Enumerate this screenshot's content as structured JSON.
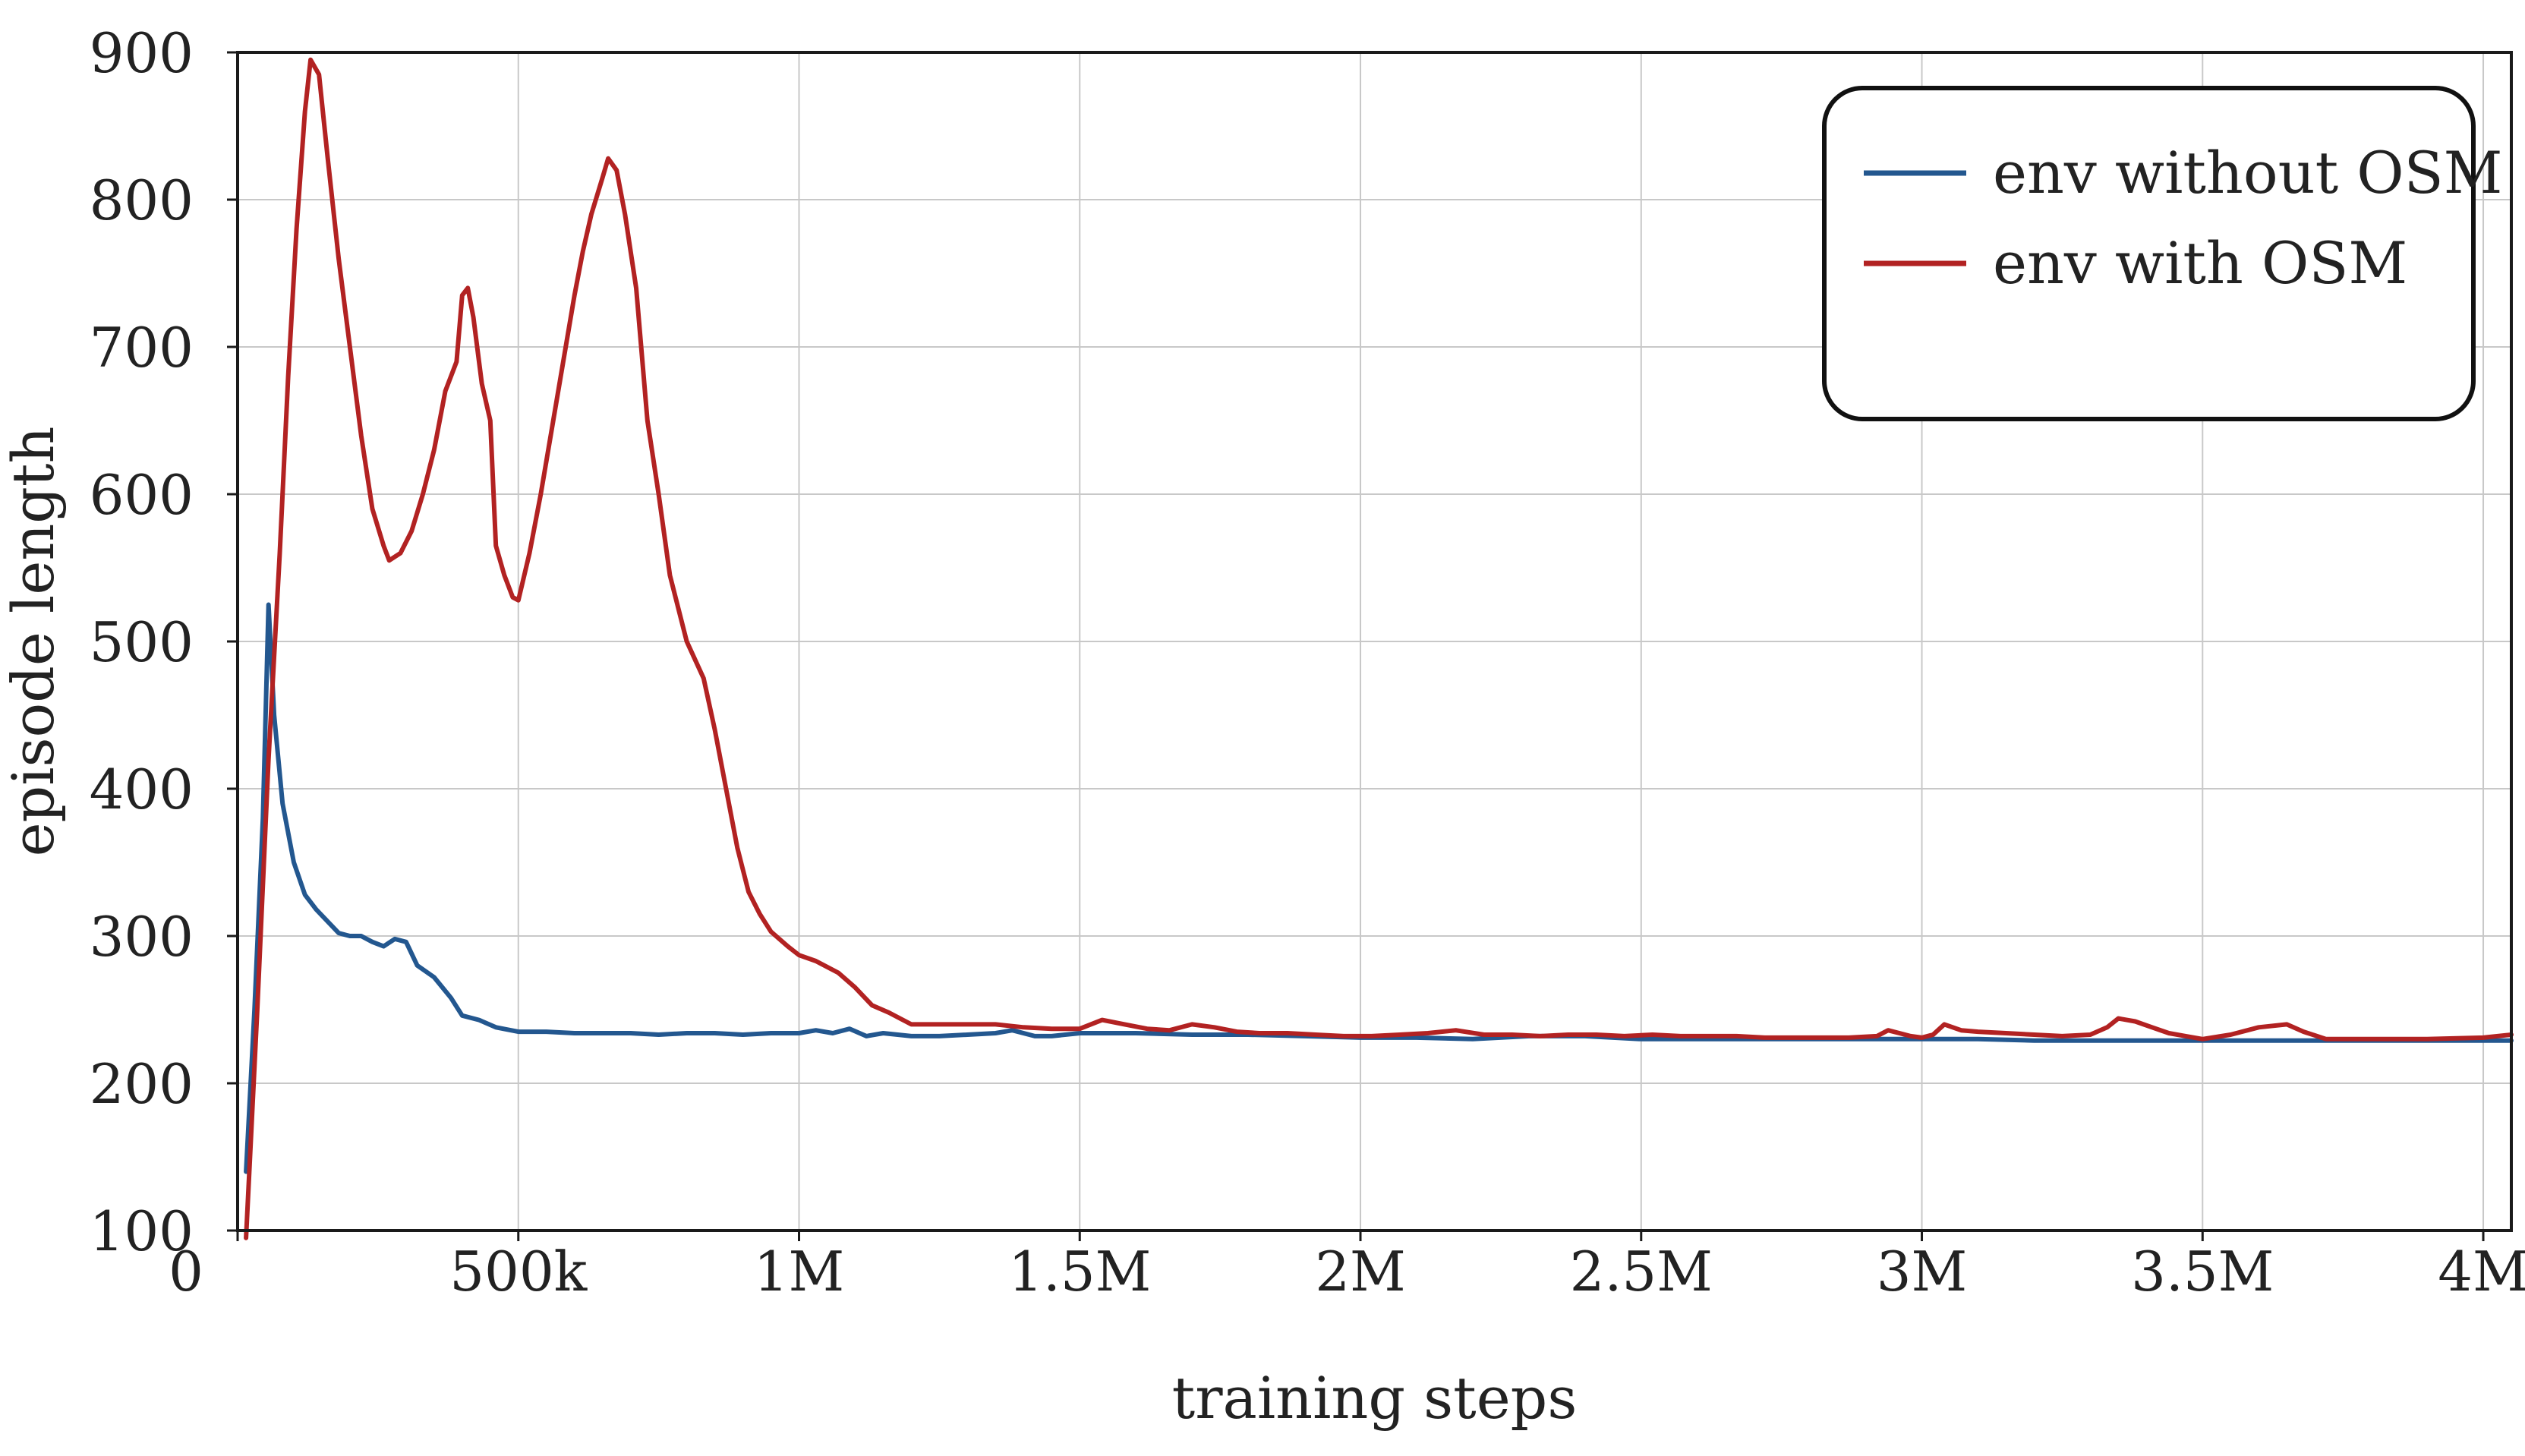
{
  "chart_data": {
    "type": "line",
    "xlabel": "training steps",
    "ylabel": "episode length",
    "xlim": [
      0,
      4050000
    ],
    "ylim": [
      100,
      900
    ],
    "x_ticks": [
      {
        "value": 0,
        "label": "0"
      },
      {
        "value": 500000,
        "label": "500k"
      },
      {
        "value": 1000000,
        "label": "1M"
      },
      {
        "value": 1500000,
        "label": "1.5M"
      },
      {
        "value": 2000000,
        "label": "2M"
      },
      {
        "value": 2500000,
        "label": "2.5M"
      },
      {
        "value": 3000000,
        "label": "3M"
      },
      {
        "value": 3500000,
        "label": "3.5M"
      },
      {
        "value": 4000000,
        "label": "4M"
      }
    ],
    "y_ticks": [
      {
        "value": 100,
        "label": "100"
      },
      {
        "value": 200,
        "label": "200"
      },
      {
        "value": 300,
        "label": "300"
      },
      {
        "value": 400,
        "label": "400"
      },
      {
        "value": 500,
        "label": "500"
      },
      {
        "value": 600,
        "label": "600"
      },
      {
        "value": 700,
        "label": "700"
      },
      {
        "value": 800,
        "label": "800"
      },
      {
        "value": 900,
        "label": "900"
      }
    ],
    "grid": true,
    "legend_position": "top-right",
    "series": [
      {
        "name": "env without OSM",
        "color": "#23578f",
        "points": [
          [
            15000,
            140
          ],
          [
            30000,
            250
          ],
          [
            45000,
            380
          ],
          [
            55000,
            525
          ],
          [
            65000,
            450
          ],
          [
            80000,
            390
          ],
          [
            100000,
            350
          ],
          [
            120000,
            328
          ],
          [
            140000,
            318
          ],
          [
            160000,
            310
          ],
          [
            180000,
            302
          ],
          [
            200000,
            300
          ],
          [
            220000,
            300
          ],
          [
            240000,
            296
          ],
          [
            260000,
            293
          ],
          [
            280000,
            298
          ],
          [
            300000,
            296
          ],
          [
            320000,
            280
          ],
          [
            350000,
            272
          ],
          [
            380000,
            258
          ],
          [
            400000,
            246
          ],
          [
            430000,
            243
          ],
          [
            460000,
            238
          ],
          [
            500000,
            235
          ],
          [
            550000,
            235
          ],
          [
            600000,
            234
          ],
          [
            650000,
            234
          ],
          [
            700000,
            234
          ],
          [
            750000,
            233
          ],
          [
            800000,
            234
          ],
          [
            850000,
            234
          ],
          [
            900000,
            233
          ],
          [
            950000,
            234
          ],
          [
            1000000,
            234
          ],
          [
            1030000,
            236
          ],
          [
            1060000,
            234
          ],
          [
            1090000,
            237
          ],
          [
            1120000,
            232
          ],
          [
            1150000,
            234
          ],
          [
            1200000,
            232
          ],
          [
            1250000,
            232
          ],
          [
            1300000,
            233
          ],
          [
            1350000,
            234
          ],
          [
            1380000,
            236
          ],
          [
            1420000,
            232
          ],
          [
            1450000,
            232
          ],
          [
            1500000,
            234
          ],
          [
            1600000,
            234
          ],
          [
            1700000,
            233
          ],
          [
            1800000,
            233
          ],
          [
            1900000,
            232
          ],
          [
            2000000,
            231
          ],
          [
            2100000,
            231
          ],
          [
            2200000,
            230
          ],
          [
            2300000,
            232
          ],
          [
            2400000,
            232
          ],
          [
            2500000,
            230
          ],
          [
            2600000,
            230
          ],
          [
            2700000,
            230
          ],
          [
            2800000,
            230
          ],
          [
            2900000,
            230
          ],
          [
            3000000,
            230
          ],
          [
            3100000,
            230
          ],
          [
            3200000,
            229
          ],
          [
            3300000,
            229
          ],
          [
            3400000,
            229
          ],
          [
            3500000,
            229
          ],
          [
            3600000,
            229
          ],
          [
            3700000,
            229
          ],
          [
            3800000,
            229
          ],
          [
            3900000,
            229
          ],
          [
            4050000,
            229
          ]
        ]
      },
      {
        "name": "env with OSM",
        "color": "#b22222",
        "points": [
          [
            15000,
            95
          ],
          [
            35000,
            250
          ],
          [
            55000,
            420
          ],
          [
            75000,
            560
          ],
          [
            90000,
            680
          ],
          [
            105000,
            780
          ],
          [
            120000,
            860
          ],
          [
            130000,
            895
          ],
          [
            145000,
            885
          ],
          [
            160000,
            830
          ],
          [
            180000,
            760
          ],
          [
            200000,
            700
          ],
          [
            220000,
            640
          ],
          [
            240000,
            590
          ],
          [
            260000,
            565
          ],
          [
            270000,
            555
          ],
          [
            290000,
            560
          ],
          [
            310000,
            575
          ],
          [
            330000,
            600
          ],
          [
            350000,
            630
          ],
          [
            370000,
            670
          ],
          [
            390000,
            690
          ],
          [
            400000,
            735
          ],
          [
            410000,
            740
          ],
          [
            420000,
            720
          ],
          [
            435000,
            675
          ],
          [
            450000,
            650
          ],
          [
            460000,
            565
          ],
          [
            475000,
            545
          ],
          [
            490000,
            530
          ],
          [
            500000,
            528
          ],
          [
            520000,
            560
          ],
          [
            540000,
            600
          ],
          [
            560000,
            645
          ],
          [
            580000,
            690
          ],
          [
            600000,
            735
          ],
          [
            615000,
            765
          ],
          [
            630000,
            790
          ],
          [
            650000,
            815
          ],
          [
            660000,
            828
          ],
          [
            675000,
            820
          ],
          [
            690000,
            790
          ],
          [
            710000,
            740
          ],
          [
            730000,
            650
          ],
          [
            750000,
            600
          ],
          [
            770000,
            545
          ],
          [
            800000,
            500
          ],
          [
            830000,
            475
          ],
          [
            850000,
            440
          ],
          [
            870000,
            400
          ],
          [
            890000,
            360
          ],
          [
            910000,
            330
          ],
          [
            930000,
            315
          ],
          [
            950000,
            303
          ],
          [
            980000,
            293
          ],
          [
            1000000,
            287
          ],
          [
            1030000,
            283
          ],
          [
            1070000,
            275
          ],
          [
            1100000,
            265
          ],
          [
            1130000,
            253
          ],
          [
            1160000,
            248
          ],
          [
            1200000,
            240
          ],
          [
            1250000,
            240
          ],
          [
            1300000,
            240
          ],
          [
            1350000,
            240
          ],
          [
            1400000,
            238
          ],
          [
            1450000,
            237
          ],
          [
            1500000,
            237
          ],
          [
            1540000,
            243
          ],
          [
            1580000,
            240
          ],
          [
            1620000,
            237
          ],
          [
            1660000,
            236
          ],
          [
            1700000,
            240
          ],
          [
            1740000,
            238
          ],
          [
            1780000,
            235
          ],
          [
            1820000,
            234
          ],
          [
            1870000,
            234
          ],
          [
            1920000,
            233
          ],
          [
            1970000,
            232
          ],
          [
            2020000,
            232
          ],
          [
            2070000,
            233
          ],
          [
            2120000,
            234
          ],
          [
            2170000,
            236
          ],
          [
            2220000,
            233
          ],
          [
            2270000,
            233
          ],
          [
            2320000,
            232
          ],
          [
            2370000,
            233
          ],
          [
            2420000,
            233
          ],
          [
            2470000,
            232
          ],
          [
            2520000,
            233
          ],
          [
            2570000,
            232
          ],
          [
            2620000,
            232
          ],
          [
            2670000,
            232
          ],
          [
            2720000,
            231
          ],
          [
            2770000,
            231
          ],
          [
            2820000,
            231
          ],
          [
            2870000,
            231
          ],
          [
            2920000,
            232
          ],
          [
            2940000,
            236
          ],
          [
            2960000,
            234
          ],
          [
            2980000,
            232
          ],
          [
            3000000,
            231
          ],
          [
            3020000,
            233
          ],
          [
            3040000,
            240
          ],
          [
            3070000,
            236
          ],
          [
            3100000,
            235
          ],
          [
            3150000,
            234
          ],
          [
            3200000,
            233
          ],
          [
            3250000,
            232
          ],
          [
            3300000,
            233
          ],
          [
            3330000,
            238
          ],
          [
            3350000,
            244
          ],
          [
            3380000,
            242
          ],
          [
            3410000,
            238
          ],
          [
            3440000,
            234
          ],
          [
            3470000,
            232
          ],
          [
            3500000,
            230
          ],
          [
            3550000,
            233
          ],
          [
            3600000,
            238
          ],
          [
            3650000,
            240
          ],
          [
            3680000,
            235
          ],
          [
            3720000,
            230
          ],
          [
            3800000,
            230
          ],
          [
            3900000,
            230
          ],
          [
            4000000,
            231
          ],
          [
            4050000,
            233
          ]
        ]
      }
    ]
  }
}
